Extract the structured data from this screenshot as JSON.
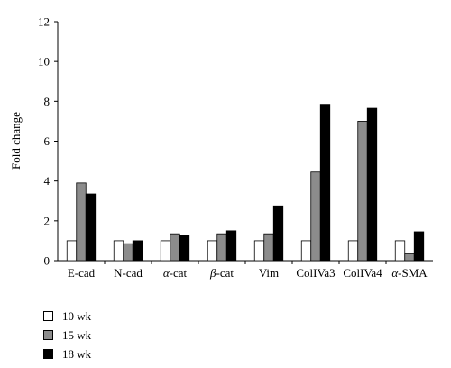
{
  "chart_data": {
    "type": "bar",
    "categories": [
      "E-cad",
      "N-cad",
      "α-cat",
      "β-cat",
      "Vim",
      "ColIVa3",
      "ColIVa4",
      "α-SMA"
    ],
    "series": [
      {
        "name": "10 wk",
        "color": "#ffffff",
        "values": [
          1.0,
          1.0,
          1.0,
          1.0,
          1.0,
          1.0,
          1.0,
          1.0
        ]
      },
      {
        "name": "15 wk",
        "color": "#8c8c8c",
        "values": [
          3.9,
          0.85,
          1.35,
          1.35,
          1.35,
          4.45,
          7.0,
          0.35
        ]
      },
      {
        "name": "18 wk",
        "color": "#000000",
        "values": [
          3.35,
          1.0,
          1.25,
          1.5,
          2.75,
          7.85,
          7.65,
          1.45
        ]
      }
    ],
    "ylabel": "Fold change",
    "ylim": [
      0,
      12
    ],
    "yticks": [
      0,
      2,
      4,
      6,
      8,
      10,
      12
    ],
    "grid": false,
    "legend_position": "bottom-left"
  }
}
